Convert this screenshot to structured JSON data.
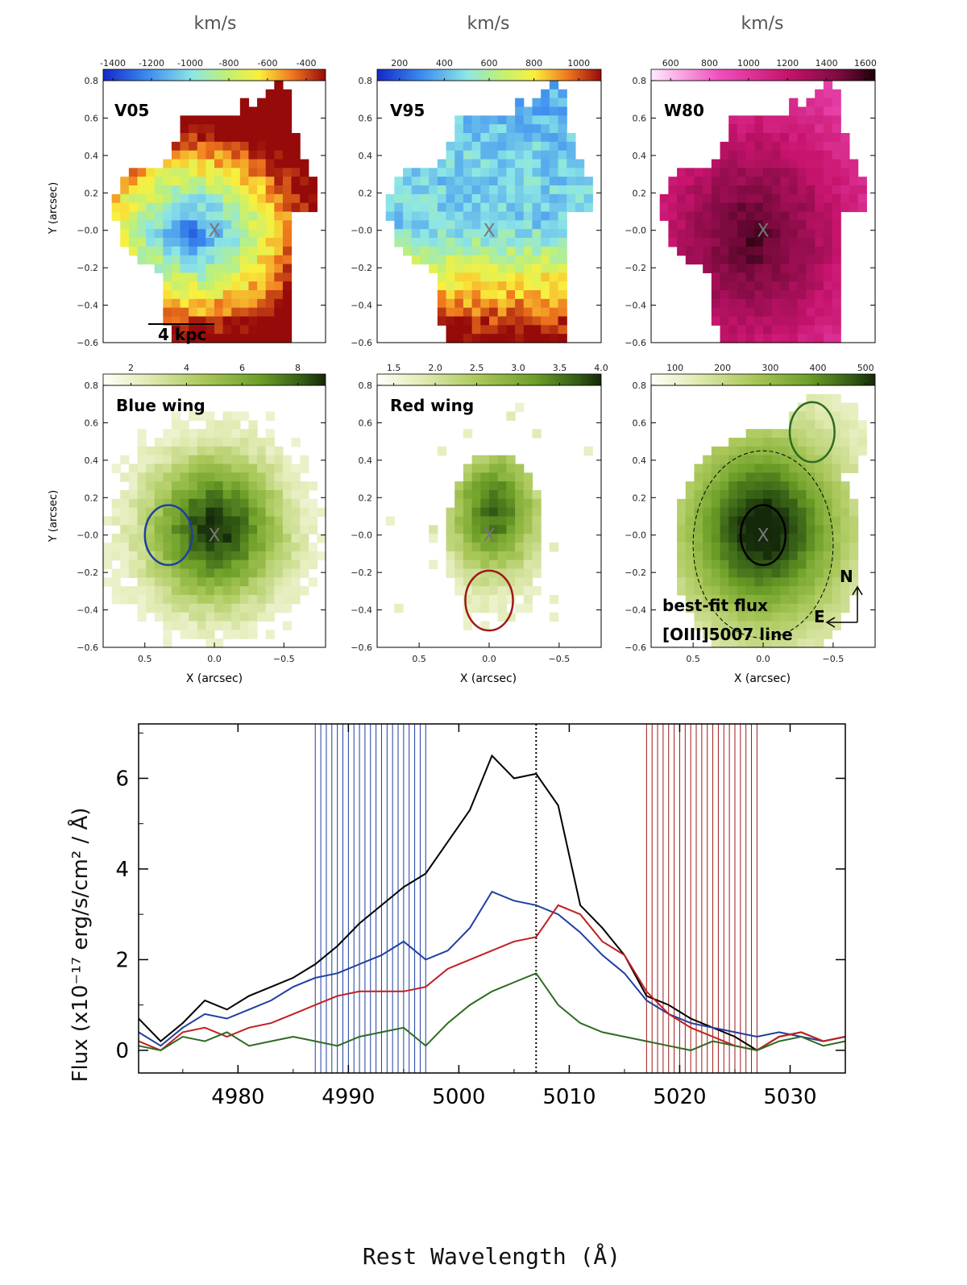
{
  "figure": {
    "unit_label": "km/s",
    "x_axis_label": "X (arcsec)",
    "y_axis_label": "Y (arcsec)",
    "scale_bar_label": "4 kpc",
    "center_marker": "X",
    "compass": {
      "north": "N",
      "east": "E"
    },
    "colors": {
      "blue_region": "#1f3fa0",
      "red_region": "#a01818",
      "green_region": "#2e6b22",
      "total_region": "#000000"
    }
  },
  "chart_data": [
    {
      "type": "heatmap",
      "panel": "V05",
      "title": "V05",
      "colorbar_unit": "km/s",
      "colorbar_ticks": [
        "-1400",
        "-1200",
        "-1000",
        "-800",
        "-600",
        "-400"
      ],
      "colorbar_range": [
        -1450,
        -300
      ],
      "colormap": "rainbow",
      "xlim": [
        0.8,
        -0.8
      ],
      "ylim": [
        -0.6,
        0.8
      ],
      "y_ticks": [
        "0.8",
        "0.6",
        "0.4",
        "0.2",
        "−0.0",
        "−0.2",
        "−0.4",
        "−0.6"
      ],
      "x_ticks": [],
      "annotations": [
        "X",
        "4 kpc"
      ]
    },
    {
      "type": "heatmap",
      "panel": "V95",
      "title": "V95",
      "colorbar_unit": "km/s",
      "colorbar_ticks": [
        "200",
        "400",
        "600",
        "800",
        "1000"
      ],
      "colorbar_range": [
        100,
        1100
      ],
      "colormap": "rainbow",
      "xlim": [
        0.8,
        -0.8
      ],
      "ylim": [
        -0.6,
        0.8
      ],
      "y_ticks": [
        "0.8",
        "0.6",
        "0.4",
        "0.2",
        "−0.0",
        "−0.2",
        "−0.4",
        "−0.6"
      ],
      "x_ticks": [],
      "annotations": [
        "X"
      ]
    },
    {
      "type": "heatmap",
      "panel": "W80",
      "title": "W80",
      "colorbar_unit": "km/s",
      "colorbar_ticks": [
        "600",
        "800",
        "1000",
        "1200",
        "1400",
        "1600"
      ],
      "colorbar_range": [
        500,
        1650
      ],
      "colormap": "magenta",
      "xlim": [
        0.8,
        -0.8
      ],
      "ylim": [
        -0.6,
        0.8
      ],
      "y_ticks": [
        "0.8",
        "0.6",
        "0.4",
        "0.2",
        "−0.0",
        "−0.2",
        "−0.4",
        "−0.6"
      ],
      "x_ticks": [],
      "annotations": [
        "X"
      ]
    },
    {
      "type": "heatmap",
      "panel": "Blue wing",
      "title": "Blue wing",
      "colorbar_ticks": [
        "2",
        "4",
        "6",
        "8"
      ],
      "colorbar_range": [
        1,
        9
      ],
      "colormap": "green",
      "xlim": [
        0.8,
        -0.8
      ],
      "ylim": [
        -0.6,
        0.8
      ],
      "y_ticks": [
        "0.8",
        "0.6",
        "0.4",
        "0.2",
        "−0.0",
        "−0.2",
        "−0.4",
        "−0.6"
      ],
      "x_ticks": [
        "0.5",
        "0.0",
        "−0.5"
      ],
      "annotations": [
        "X"
      ],
      "aperture": {
        "x": 0.33,
        "y": 0.0,
        "rx": 0.17,
        "ry": 0.16,
        "color": "blue"
      }
    },
    {
      "type": "heatmap",
      "panel": "Red wing",
      "title": "Red wing",
      "colorbar_ticks": [
        "1.5",
        "2.0",
        "2.5",
        "3.0",
        "3.5",
        "4.0"
      ],
      "colorbar_range": [
        1.3,
        4.0
      ],
      "colormap": "green",
      "xlim": [
        0.8,
        -0.8
      ],
      "ylim": [
        -0.6,
        0.8
      ],
      "y_ticks": [
        "0.8",
        "0.6",
        "0.4",
        "0.2",
        "−0.0",
        "−0.2",
        "−0.4",
        "−0.6"
      ],
      "x_ticks": [
        "0.5",
        "0.0",
        "−0.5"
      ],
      "annotations": [
        "X"
      ],
      "aperture": {
        "x": 0.0,
        "y": -0.35,
        "rx": 0.17,
        "ry": 0.16,
        "color": "red"
      }
    },
    {
      "type": "heatmap",
      "panel": "best-fit flux",
      "title": "best-fit flux",
      "subtitle": "[OIII]5007 line",
      "colorbar_ticks": [
        "100",
        "200",
        "300",
        "400",
        "500"
      ],
      "colorbar_range": [
        50,
        520
      ],
      "colormap": "green",
      "xlim": [
        0.8,
        -0.8
      ],
      "ylim": [
        -0.6,
        0.8
      ],
      "y_ticks": [
        "0.8",
        "0.6",
        "0.4",
        "0.2",
        "−0.0",
        "−0.2",
        "−0.4",
        "−0.6"
      ],
      "x_ticks": [
        "0.5",
        "0.0",
        "−0.5"
      ],
      "annotations": [
        "X",
        "N",
        "E"
      ],
      "apertures": [
        {
          "x": 0.0,
          "y": 0.0,
          "rx": 0.16,
          "ry": 0.16,
          "color": "black"
        },
        {
          "x": -0.35,
          "y": 0.55,
          "rx": 0.16,
          "ry": 0.16,
          "color": "green"
        },
        {
          "x": 0.0,
          "y": -0.05,
          "rx": 0.5,
          "ry": 0.5,
          "color": "black-dashed"
        }
      ]
    },
    {
      "type": "line",
      "title": "",
      "xlabel": "Rest Wavelength (Å)",
      "ylabel": "Flux (x10⁻¹⁷ erg/s/cm² / Å)",
      "xlim": [
        4971,
        5035
      ],
      "ylim": [
        -0.5,
        7.2
      ],
      "x_ticks": [
        4980,
        4990,
        5000,
        5010,
        5020,
        5030
      ],
      "y_ticks": [
        0,
        2,
        4,
        6
      ],
      "vline": 5007,
      "blue_band": [
        4987,
        4997
      ],
      "red_band": [
        5017,
        5027
      ],
      "x": [
        4971,
        4973,
        4975,
        4977,
        4979,
        4981,
        4983,
        4985,
        4987,
        4989,
        4991,
        4993,
        4995,
        4997,
        4999,
        5001,
        5003,
        5005,
        5007,
        5009,
        5011,
        5013,
        5015,
        5017,
        5019,
        5021,
        5023,
        5025,
        5027,
        5029,
        5031,
        5033,
        5035
      ],
      "series": [
        {
          "name": "total",
          "color": "#000000",
          "values": [
            0.7,
            0.2,
            0.6,
            1.1,
            0.9,
            1.2,
            1.4,
            1.6,
            1.9,
            2.3,
            2.8,
            3.2,
            3.6,
            3.9,
            4.6,
            5.3,
            6.5,
            6.0,
            6.1,
            5.4,
            3.2,
            2.7,
            2.1,
            1.2,
            1.0,
            0.7,
            0.5,
            0.3,
            0.0,
            0.3,
            0.4,
            0.2,
            0.3
          ]
        },
        {
          "name": "blue",
          "color": "#1f3fa0",
          "values": [
            0.4,
            0.1,
            0.5,
            0.8,
            0.7,
            0.9,
            1.1,
            1.4,
            1.6,
            1.7,
            1.9,
            2.1,
            2.4,
            2.0,
            2.2,
            2.7,
            3.5,
            3.3,
            3.2,
            3.0,
            2.6,
            2.1,
            1.7,
            1.1,
            0.8,
            0.6,
            0.5,
            0.4,
            0.3,
            0.4,
            0.3,
            0.2,
            0.3
          ]
        },
        {
          "name": "red",
          "color": "#c02020",
          "values": [
            0.2,
            0.0,
            0.4,
            0.5,
            0.3,
            0.5,
            0.6,
            0.8,
            1.0,
            1.2,
            1.3,
            1.3,
            1.3,
            1.4,
            1.8,
            2.0,
            2.2,
            2.4,
            2.5,
            3.2,
            3.0,
            2.4,
            2.1,
            1.3,
            0.8,
            0.5,
            0.3,
            0.1,
            0.0,
            0.3,
            0.4,
            0.2,
            0.3
          ]
        },
        {
          "name": "green",
          "color": "#2e6b22",
          "values": [
            0.1,
            0.0,
            0.3,
            0.2,
            0.4,
            0.1,
            0.2,
            0.3,
            0.2,
            0.1,
            0.3,
            0.4,
            0.5,
            0.1,
            0.6,
            1.0,
            1.3,
            1.5,
            1.7,
            1.0,
            0.6,
            0.4,
            0.3,
            0.2,
            0.1,
            0.0,
            0.2,
            0.1,
            0.0,
            0.2,
            0.3,
            0.1,
            0.2
          ]
        }
      ]
    }
  ]
}
